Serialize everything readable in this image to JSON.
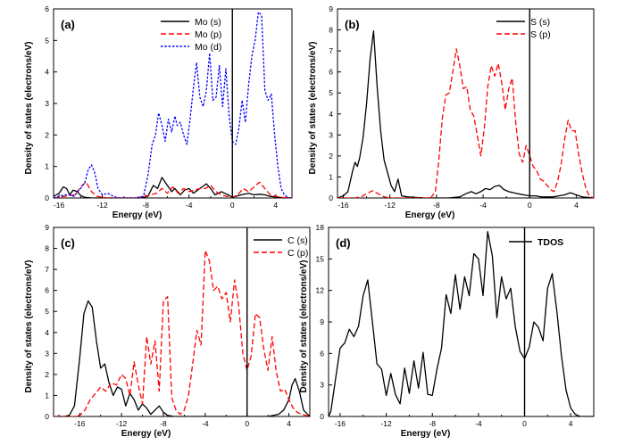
{
  "chart_data": [
    {
      "type": "line",
      "panel_label": "(a)",
      "xlabel": "Energy (eV)",
      "ylabel": "Density of states (electrons/eV)",
      "xlim": [
        -16.5,
        5.5
      ],
      "ylim": [
        0,
        6
      ],
      "xticks": [
        -16,
        -12,
        -8,
        -4,
        0,
        4
      ],
      "x_tick_labels": [
        "-16",
        "-12",
        "-8",
        "-4",
        "0",
        "4"
      ],
      "yticks": [
        0,
        1,
        2,
        3,
        4,
        5,
        6
      ],
      "y_tick_labels": [
        "0",
        "1",
        "2",
        "3",
        "4",
        "5",
        "6"
      ],
      "fermi_level": 0,
      "legend_position": "top-center",
      "series": [
        {
          "name": "Mo (s)",
          "color": "#000000",
          "dash": "solid",
          "x": [
            -16.5,
            -16,
            -15.6,
            -15.3,
            -15,
            -14.7,
            -14.3,
            -14,
            -13.6,
            -13,
            -12.4,
            -11.5,
            -10,
            -8.5,
            -7.8,
            -7.3,
            -6.9,
            -6.5,
            -6.1,
            -5.6,
            -5.3,
            -4.8,
            -4.4,
            -4,
            -3.6,
            -3.2,
            -2.8,
            -2.4,
            -2,
            -1.6,
            -1,
            -0.4,
            0,
            0.3,
            0.8,
            1.5,
            2,
            2.5,
            3,
            3.5,
            4,
            4.6,
            5.5
          ],
          "y": [
            0.05,
            0.15,
            0.35,
            0.3,
            0.1,
            0.25,
            0.2,
            0.08,
            0.02,
            0,
            0,
            0,
            0,
            0,
            0.05,
            0.4,
            0.3,
            0.65,
            0.45,
            0.2,
            0.3,
            0.1,
            0.25,
            0.3,
            0.15,
            0.25,
            0.35,
            0.45,
            0.3,
            0.1,
            0.2,
            0.1,
            0.02,
            0.05,
            0.1,
            0.15,
            0.1,
            0.12,
            0.1,
            0.05,
            0.03,
            0.01,
            0
          ]
        },
        {
          "name": "Mo (p)",
          "color": "#ff0000",
          "dash": "dashed",
          "x": [
            -16.5,
            -15.5,
            -14.5,
            -14,
            -13.5,
            -13,
            -12.5,
            -11.5,
            -9,
            -8,
            -7,
            -6.5,
            -6,
            -5.5,
            -5,
            -4.5,
            -4,
            -3.5,
            -3,
            -2.5,
            -2,
            -1.5,
            -1,
            -0.5,
            0,
            0.5,
            1,
            1.5,
            2,
            2.5,
            3,
            3.5,
            4,
            4.5,
            5.5
          ],
          "y": [
            0,
            0.05,
            0.1,
            0.35,
            0.5,
            0.2,
            0.05,
            0,
            0,
            0.05,
            0.15,
            0.3,
            0.15,
            0.35,
            0.15,
            0.3,
            0.2,
            0.25,
            0.3,
            0.3,
            0.4,
            0.2,
            0.1,
            0.05,
            0.02,
            0.1,
            0.3,
            0.2,
            0.35,
            0.5,
            0.3,
            0.1,
            0.05,
            0.02,
            0
          ]
        },
        {
          "name": "Mo (d)",
          "color": "#0000ff",
          "dash": "dotted",
          "x": [
            -16.5,
            -16,
            -15.5,
            -15,
            -14.6,
            -14.3,
            -14,
            -13.6,
            -13.3,
            -13,
            -12.7,
            -12.4,
            -12,
            -11.5,
            -11,
            -10.5,
            -9,
            -8.2,
            -7.8,
            -7.4,
            -7.1,
            -6.8,
            -6.5,
            -6.2,
            -5.9,
            -5.6,
            -5.3,
            -5.1,
            -4.8,
            -4.5,
            -4.2,
            -3.9,
            -3.6,
            -3.3,
            -3,
            -2.7,
            -2.4,
            -2.1,
            -1.8,
            -1.5,
            -1.2,
            -0.9,
            -0.6,
            -0.3,
            0,
            0.3,
            0.6,
            0.9,
            1.2,
            1.5,
            1.8,
            2.1,
            2.4,
            2.7,
            3,
            3.3,
            3.6,
            3.9,
            4.2,
            4.5,
            4.8,
            5.2,
            5.5
          ],
          "y": [
            0,
            0.05,
            0.1,
            0.1,
            0.05,
            0.2,
            0.3,
            0.5,
            0.9,
            1.05,
            0.8,
            0.3,
            0.1,
            0.15,
            0.05,
            0,
            0,
            0.05,
            0.7,
            1.7,
            2.0,
            2.7,
            2.3,
            1.8,
            2.5,
            2.1,
            2.6,
            2.3,
            2.4,
            2.0,
            1.7,
            2.5,
            3.5,
            4.3,
            3.2,
            2.9,
            3.4,
            4.6,
            3.1,
            3.2,
            4.2,
            2.9,
            4.1,
            2.6,
            1.8,
            1.7,
            2.2,
            3.1,
            2.4,
            3.6,
            4.5,
            5.0,
            5.9,
            5.8,
            3.4,
            3.1,
            3.3,
            2.0,
            1.0,
            0.3,
            0.1,
            0,
            0
          ]
        }
      ]
    },
    {
      "type": "line",
      "panel_label": "(b)",
      "xlabel": "Energy (eV)",
      "ylabel": "Density of states (electrons/eV)",
      "xlim": [
        -16.5,
        5.5
      ],
      "ylim": [
        0,
        9
      ],
      "xticks": [
        -16,
        -12,
        -8,
        -4,
        0,
        4
      ],
      "x_tick_labels": [
        "-16",
        "-12",
        "-8",
        "-4",
        "0",
        "4"
      ],
      "yticks": [
        0,
        1,
        2,
        3,
        4,
        5,
        6,
        7,
        8,
        9
      ],
      "y_tick_labels": [
        "0",
        "1",
        "2",
        "3",
        "4",
        "5",
        "6",
        "7",
        "8",
        "9"
      ],
      "fermi_level": 0,
      "legend_position": "top-right",
      "series": [
        {
          "name": "S (s)",
          "color": "#000000",
          "dash": "solid",
          "x": [
            -16.5,
            -16,
            -15.6,
            -15.2,
            -15,
            -14.8,
            -14.6,
            -14.3,
            -14,
            -13.7,
            -13.4,
            -13.1,
            -12.8,
            -12.5,
            -12.2,
            -11.9,
            -11.6,
            -11.3,
            -11,
            -10.5,
            -9,
            -7,
            -6,
            -5.5,
            -5,
            -4.6,
            -4.2,
            -3.8,
            -3.4,
            -3,
            -2.6,
            -2.2,
            -1.8,
            -1.4,
            -1,
            -0.5,
            0,
            0.5,
            1,
            1.5,
            2,
            2.5,
            3,
            3.5,
            4,
            4.5,
            5.5
          ],
          "y": [
            0,
            0.1,
            0.3,
            1.3,
            1.7,
            1.5,
            1.9,
            2.9,
            4.5,
            6.6,
            7.95,
            5.3,
            3.2,
            1.8,
            1.2,
            0.6,
            0.3,
            0.9,
            0.1,
            0.05,
            0,
            0,
            0.05,
            0.2,
            0.3,
            0.2,
            0.3,
            0.45,
            0.4,
            0.55,
            0.6,
            0.4,
            0.3,
            0.25,
            0.2,
            0.15,
            0.1,
            0.1,
            0.05,
            0.05,
            0.05,
            0.1,
            0.15,
            0.25,
            0.15,
            0.05,
            0
          ]
        },
        {
          "name": "S (p)",
          "color": "#ff0000",
          "dash": "dashed",
          "x": [
            -16.5,
            -15,
            -14.5,
            -14,
            -13.5,
            -13,
            -12.5,
            -12,
            -11,
            -10,
            -8.5,
            -8.1,
            -7.8,
            -7.5,
            -7.2,
            -6.9,
            -6.6,
            -6.3,
            -6,
            -5.7,
            -5.4,
            -5.1,
            -4.8,
            -4.5,
            -4.2,
            -3.9,
            -3.6,
            -3.3,
            -3,
            -2.7,
            -2.4,
            -2.1,
            -1.8,
            -1.5,
            -1.2,
            -0.9,
            -0.6,
            -0.3,
            0,
            0.3,
            0.6,
            0.9,
            1.2,
            1.5,
            1.8,
            2.1,
            2.4,
            2.7,
            3,
            3.3,
            3.6,
            3.9,
            4.2,
            4.5,
            4.8,
            5.1,
            5.5
          ],
          "y": [
            0,
            0,
            0.05,
            0.2,
            0.35,
            0.2,
            0.05,
            0,
            0,
            0,
            0,
            0.3,
            1.8,
            3.8,
            4.9,
            5.0,
            6.0,
            7.1,
            6.3,
            5.2,
            5.3,
            4.2,
            3.9,
            3.0,
            2.0,
            3.3,
            5.3,
            6.3,
            5.8,
            6.4,
            5.5,
            4.2,
            5.2,
            5.7,
            3.6,
            2.1,
            1.7,
            2.5,
            2.0,
            1.5,
            1.3,
            0.9,
            0.8,
            0.6,
            0.4,
            0.3,
            0.8,
            1.6,
            2.8,
            3.7,
            3.2,
            3.2,
            2.1,
            1.2,
            0.5,
            0.1,
            0
          ]
        }
      ]
    },
    {
      "type": "line",
      "panel_label": "(c)",
      "xlabel": "Energy (eV)",
      "ylabel": "Density of states (electrons/eV)",
      "xlim": [
        -18.5,
        6
      ],
      "ylim": [
        0,
        9
      ],
      "xticks": [
        -16,
        -12,
        -8,
        -4,
        0,
        4
      ],
      "x_tick_labels": [
        "-16",
        "-12",
        "-8",
        "-4",
        "0",
        "4"
      ],
      "yticks": [
        0,
        1,
        2,
        3,
        4,
        5,
        6,
        7,
        8,
        9
      ],
      "y_tick_labels": [
        "0",
        "1",
        "2",
        "3",
        "4",
        "5",
        "6",
        "7",
        "8",
        "9"
      ],
      "fermi_level": 0,
      "legend_position": "top-right",
      "series": [
        {
          "name": "C (s)",
          "color": "#000000",
          "dash": "solid",
          "x": [
            -18.5,
            -17.5,
            -17,
            -16.5,
            -16,
            -15.6,
            -15.2,
            -14.8,
            -14.4,
            -14,
            -13.6,
            -13.2,
            -12.8,
            -12.4,
            -12,
            -11.6,
            -11.2,
            -10.8,
            -10.4,
            -10,
            -9.6,
            -9.2,
            -8.8,
            -8.4,
            -8,
            -7.6,
            -7,
            -6,
            -4,
            -2,
            0,
            1,
            2,
            3,
            3.5,
            4,
            4.3,
            4.6,
            5,
            5.4,
            6
          ],
          "y": [
            0,
            0,
            0.05,
            0.5,
            2.8,
            4.9,
            5.5,
            5.2,
            3.6,
            2.3,
            2.5,
            1.6,
            1.0,
            1.4,
            1.3,
            0.5,
            1.1,
            0.8,
            0.3,
            0.6,
            0.4,
            0.1,
            0.3,
            0.5,
            0.2,
            0.05,
            0,
            0,
            0,
            0,
            0,
            0,
            0,
            0.1,
            0.3,
            0.8,
            1.5,
            1.8,
            1.2,
            0.3,
            0
          ]
        },
        {
          "name": "C (p)",
          "color": "#ff0000",
          "dash": "dashed",
          "x": [
            -18.5,
            -16.5,
            -16,
            -15.5,
            -15,
            -14.5,
            -14,
            -13.5,
            -13,
            -12.5,
            -12,
            -11.6,
            -11.2,
            -10.8,
            -10.4,
            -10,
            -9.6,
            -9.2,
            -8.8,
            -8.4,
            -8,
            -7.6,
            -7.2,
            -6.8,
            -6.4,
            -6,
            -5.6,
            -5.2,
            -4.8,
            -4.4,
            -4,
            -3.6,
            -3.2,
            -2.8,
            -2.4,
            -2,
            -1.6,
            -1.2,
            -0.8,
            -0.4,
            0,
            0.4,
            0.8,
            1.2,
            1.6,
            2,
            2.4,
            2.8,
            3.2,
            3.6,
            4,
            4.4,
            4.8,
            5.2,
            5.6,
            6
          ],
          "y": [
            0,
            0,
            0.05,
            0.3,
            0.8,
            1.1,
            1.4,
            1.2,
            1.6,
            1.5,
            2.0,
            1.8,
            1.0,
            2.6,
            1.5,
            0.6,
            3.8,
            2.5,
            3.6,
            1.2,
            5.5,
            5.7,
            0.9,
            0.3,
            0.1,
            0.3,
            1.0,
            2.5,
            4.1,
            3.4,
            7.9,
            7.4,
            6.0,
            6.2,
            5.6,
            5.9,
            4.5,
            6.5,
            5.3,
            3.0,
            2.2,
            2.9,
            4.9,
            4.7,
            3.2,
            2.2,
            3.8,
            2.1,
            1.2,
            1.3,
            0.8,
            0.4,
            0.2,
            0.1,
            0.05,
            0
          ]
        }
      ]
    },
    {
      "type": "line",
      "panel_label": "(d)",
      "xlabel": "Energy (eV)",
      "ylabel": "Density of states (electrons/eV)",
      "xlim": [
        -17,
        6
      ],
      "ylim": [
        0,
        18
      ],
      "xticks": [
        -16,
        -12,
        -8,
        -4,
        0,
        4
      ],
      "x_tick_labels": [
        "-16",
        "-12",
        "-8",
        "-4",
        "0",
        "4"
      ],
      "yticks": [
        0,
        3,
        6,
        9,
        12,
        15,
        18
      ],
      "y_tick_labels": [
        "0",
        "3",
        "6",
        "9",
        "12",
        "15",
        "18"
      ],
      "fermi_level": 0,
      "legend_position": "top-right",
      "series": [
        {
          "name": "TDOS",
          "color": "#000000",
          "dash": "solid",
          "x": [
            -17,
            -16.8,
            -16.4,
            -16,
            -15.6,
            -15.2,
            -14.8,
            -14.4,
            -14,
            -13.6,
            -13.2,
            -12.8,
            -12.4,
            -12,
            -11.6,
            -11.2,
            -10.8,
            -10.4,
            -10,
            -9.6,
            -9.2,
            -8.8,
            -8.4,
            -8,
            -7.6,
            -7.2,
            -6.8,
            -6.4,
            -6,
            -5.6,
            -5.2,
            -4.8,
            -4.4,
            -4,
            -3.6,
            -3.2,
            -2.8,
            -2.4,
            -2,
            -1.6,
            -1.2,
            -0.8,
            -0.4,
            0,
            0.4,
            0.8,
            1.2,
            1.6,
            2,
            2.4,
            2.8,
            3.2,
            3.6,
            4,
            4.4,
            4.8,
            5.2,
            5.6,
            6
          ],
          "y": [
            0,
            0.5,
            3.5,
            6.5,
            7.0,
            8.3,
            7.6,
            8.6,
            11.5,
            13.0,
            9.0,
            5.0,
            4.5,
            2.0,
            4.1,
            2.1,
            1.2,
            4.6,
            2.2,
            5.3,
            2.7,
            6.1,
            2.1,
            2.0,
            4.5,
            6.5,
            11.6,
            9.8,
            13.5,
            10.2,
            13.3,
            11.5,
            15.5,
            15.0,
            11.5,
            17.6,
            15.3,
            9.4,
            13.3,
            11.2,
            12.2,
            8.5,
            6.2,
            5.5,
            6.6,
            9.0,
            8.5,
            7.2,
            12.2,
            13.6,
            10.0,
            5.8,
            2.5,
            0.8,
            0.2,
            0,
            0,
            0,
            0
          ]
        }
      ]
    }
  ]
}
